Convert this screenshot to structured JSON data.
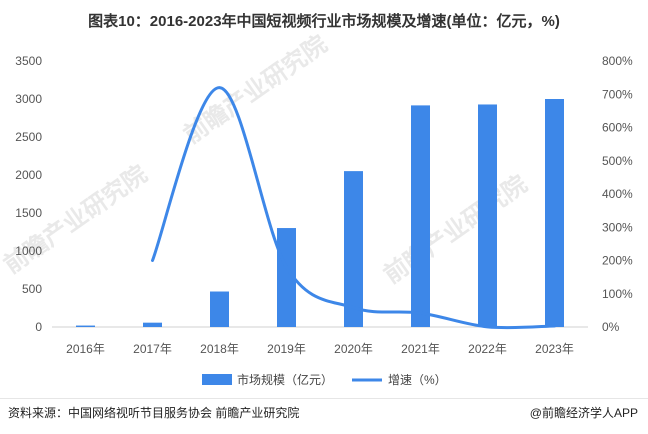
{
  "title": "图表10：2016-2023年中国短视频行业市场规模及增速(单位：亿元，%)",
  "chart_data": {
    "type": "bar",
    "categories": [
      "2016年",
      "2017年",
      "2018年",
      "2019年",
      "2020年",
      "2021年",
      "2022年",
      "2023年"
    ],
    "series": [
      {
        "name": "市场规模（亿元）",
        "type": "bar",
        "axis": "left",
        "values": [
          19,
          57,
          467,
          1302,
          2051,
          2916,
          2928,
          3000
        ]
      },
      {
        "name": "增速（%）",
        "type": "line",
        "axis": "right",
        "values": [
          null,
          200,
          720,
          180,
          58,
          42,
          0.4,
          3
        ]
      }
    ],
    "yleft_ticks": [
      0,
      500,
      1000,
      1500,
      2000,
      2500,
      3000,
      3500
    ],
    "yright_ticks": [
      "0%",
      "100%",
      "200%",
      "300%",
      "400%",
      "500%",
      "600%",
      "700%",
      "800%"
    ],
    "ylim_left": [
      0,
      3500
    ],
    "ylim_right": [
      0,
      800
    ],
    "legend_position": "bottom",
    "bar_color": "#3d87e8",
    "line_color": "#3d87e8"
  },
  "source": "资料来源：中国网络视听节目服务协会 前瞻产业研究院",
  "brand": "@前瞻经济学人APP"
}
